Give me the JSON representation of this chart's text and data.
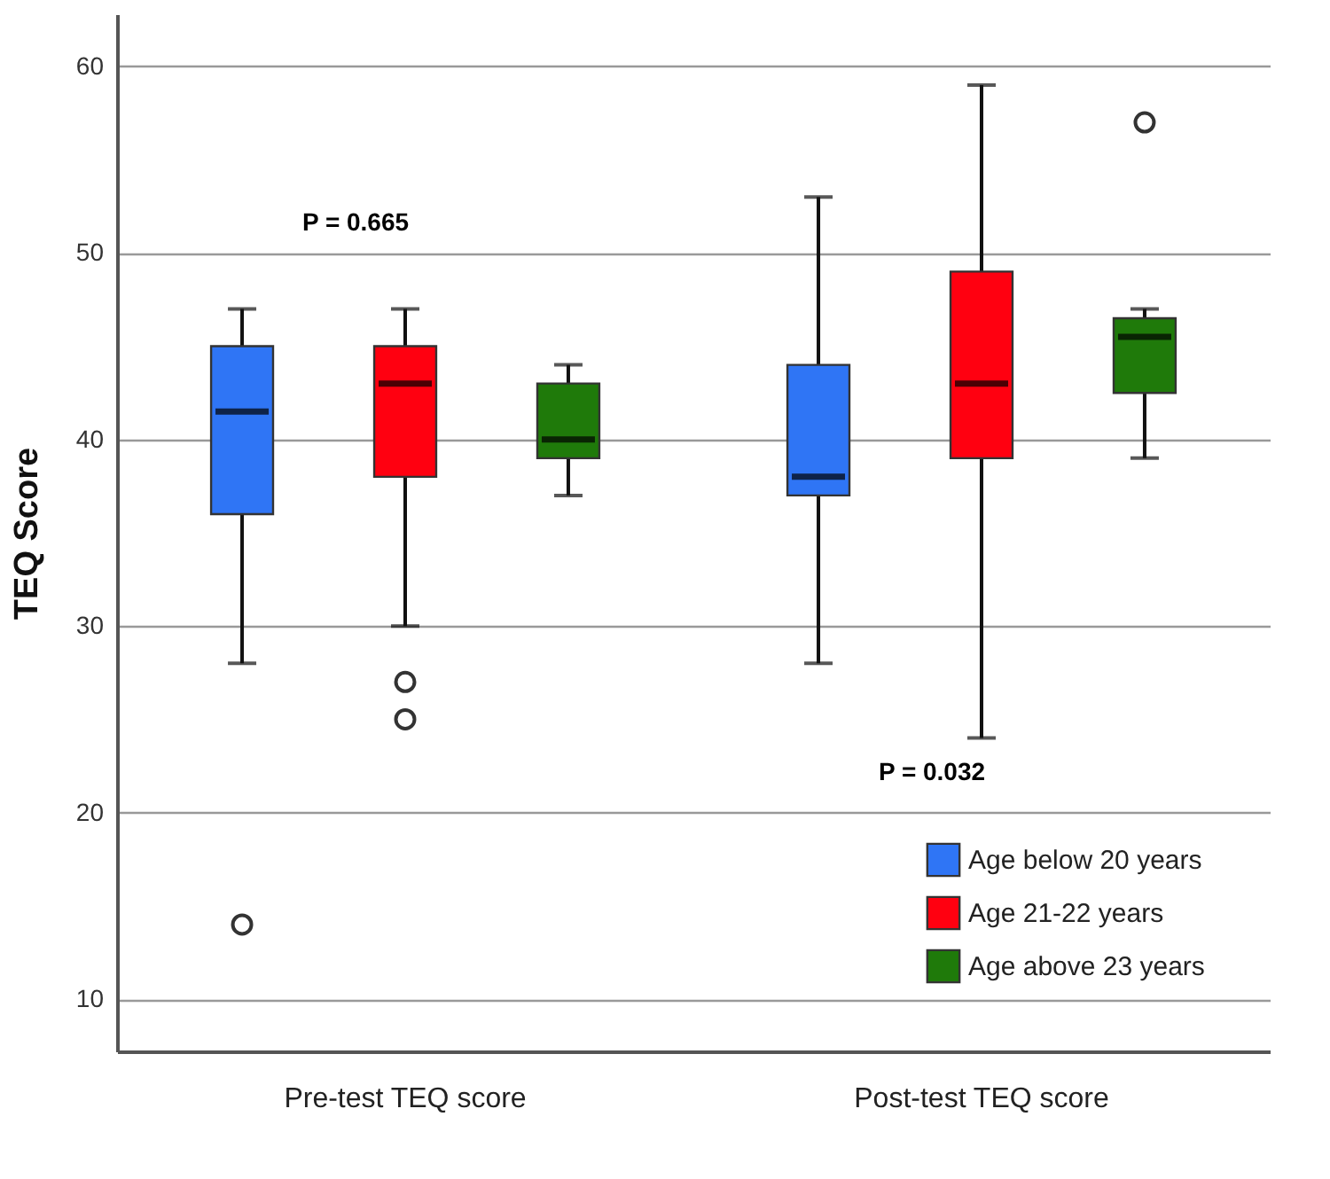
{
  "chart_data": {
    "type": "box",
    "ylabel": "TEQ Score",
    "categories": [
      "Pre-test TEQ score",
      "Post-test TEQ score"
    ],
    "ylim": [
      7.2,
      62.8
    ],
    "yticks": [
      10,
      20,
      30,
      40,
      50,
      60
    ],
    "grid": "y",
    "legend": "bottom right",
    "marker": "circle",
    "annotations": [
      "P = 0.665",
      "P = 0.032"
    ],
    "series": [
      {
        "name": "Age below 20 years",
        "color": "#2f75f5",
        "boxes": [
          {
            "low": 28,
            "q1": 36,
            "median": 41.5,
            "q3": 45,
            "high": 47,
            "outliers": [
              14
            ]
          },
          {
            "low": 28,
            "q1": 37,
            "median": 38,
            "q3": 44,
            "high": 53
          }
        ]
      },
      {
        "name": "Age 21-22 years",
        "color": "#ff0010",
        "boxes": [
          {
            "low": 30,
            "q1": 38,
            "median": 43,
            "q3": 45,
            "high": 47,
            "outliers": [
              27,
              25
            ]
          },
          {
            "low": 24,
            "q1": 39,
            "median": 43,
            "q3": 49,
            "high": 59
          }
        ]
      },
      {
        "name": "Age above 23 years",
        "color": "#1f7a0a",
        "boxes": [
          {
            "low": 37,
            "q1": 39,
            "median": 40,
            "q3": 43,
            "high": 44
          },
          {
            "low": 39,
            "q1": 42.5,
            "median": 45.5,
            "q3": 46.5,
            "high": 47,
            "outliers": [
              57
            ]
          }
        ]
      }
    ]
  }
}
